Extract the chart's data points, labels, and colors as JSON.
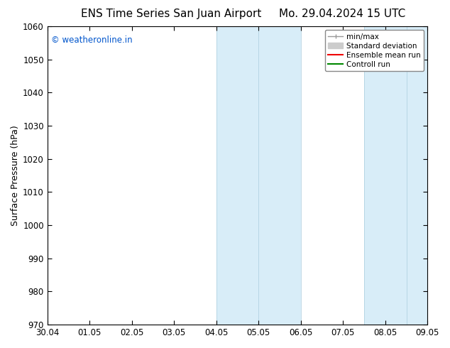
{
  "title": "ENS Time Series San Juan Airport",
  "title_right": "Mo. 29.04.2024 15 UTC",
  "ylabel": "Surface Pressure (hPa)",
  "watermark": "© weatheronline.in",
  "watermark_color": "#0055cc",
  "xlim_left": 0,
  "xlim_right": 9,
  "ylim_bottom": 970,
  "ylim_top": 1060,
  "yticks": [
    970,
    980,
    990,
    1000,
    1010,
    1020,
    1030,
    1040,
    1050,
    1060
  ],
  "xtick_positions": [
    0,
    1,
    2,
    3,
    4,
    5,
    6,
    7,
    8,
    9
  ],
  "xtick_labels": [
    "30.04",
    "01.05",
    "02.05",
    "03.05",
    "04.05",
    "05.05",
    "06.05",
    "07.05",
    "08.05",
    "09.05"
  ],
  "shaded_regions": [
    {
      "x_start": 4,
      "x_end": 5,
      "color": "#ddeef8"
    },
    {
      "x_start": 4.5,
      "x_end": 5.5,
      "color": "#ddeef8"
    },
    {
      "x_start": 7,
      "x_end": 8,
      "color": "#ddeef8"
    },
    {
      "x_start": 7.5,
      "x_end": 8.5,
      "color": "#ddeef8"
    }
  ],
  "blue_bands": [
    {
      "x_start": 4,
      "x_end": 6,
      "color": "#d8edf8"
    },
    {
      "x_start": 7.5,
      "x_end": 9,
      "color": "#d8edf8"
    }
  ],
  "legend_items": [
    {
      "label": "min/max",
      "color": "#999999",
      "lw": 1.0
    },
    {
      "label": "Standard deviation",
      "color": "#cccccc",
      "lw": 6
    },
    {
      "label": "Ensemble mean run",
      "color": "#ee0000",
      "lw": 1.0
    },
    {
      "label": "Controll run",
      "color": "#008800",
      "lw": 1.0
    }
  ],
  "bg_color": "#ffffff",
  "spine_color": "#000000",
  "tick_color": "#000000",
  "title_fontsize": 11,
  "tick_fontsize": 8.5,
  "ylabel_fontsize": 9,
  "watermark_fontsize": 8.5
}
